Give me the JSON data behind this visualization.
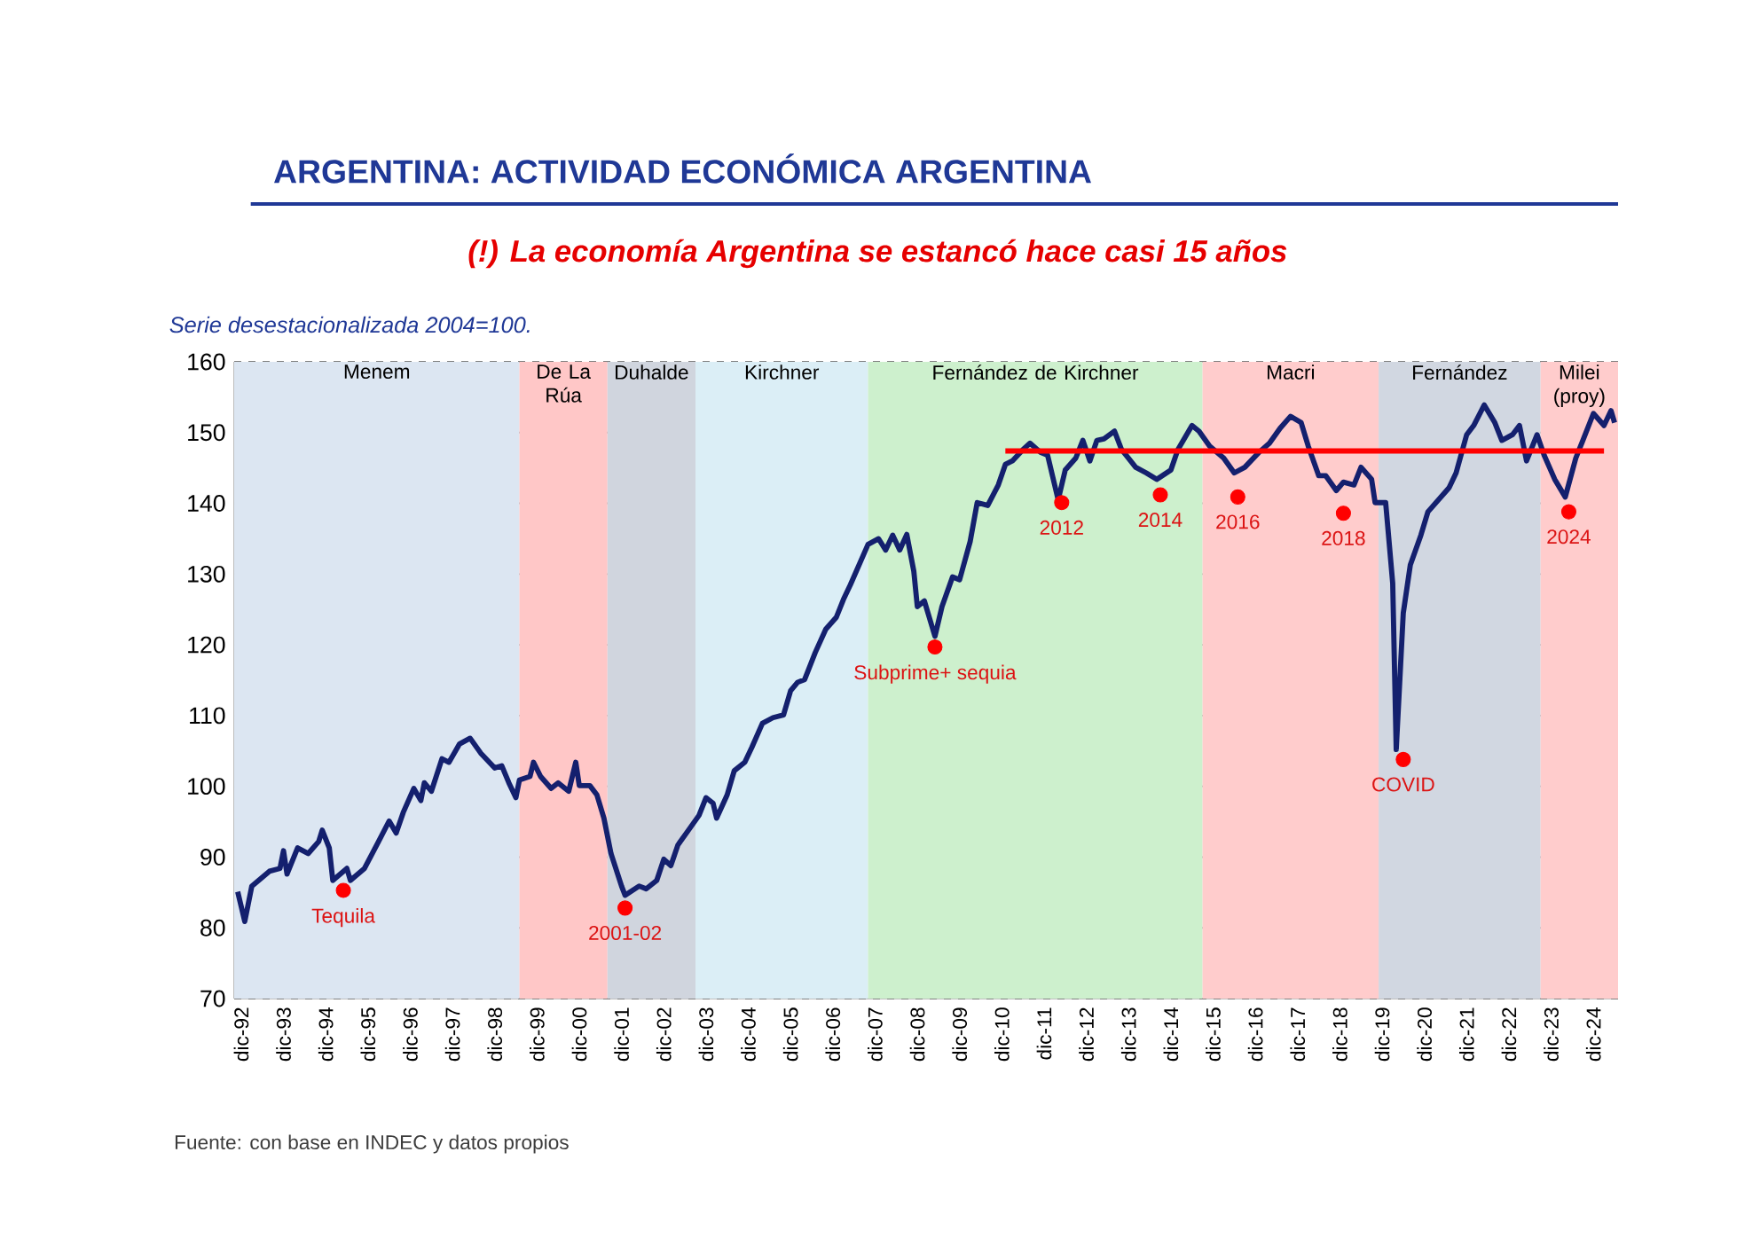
{
  "chart_data": {
    "type": "line",
    "title": "ARGENTINA: ACTIVIDAD ECONÓMICA ARGENTINA",
    "subtitle": "(!) La economía Argentina se estancó hace casi 15 años",
    "ylabel": "Serie desestacionalizada 2004=100.",
    "xlim": [
      "1992-10",
      "2025-07"
    ],
    "ylim": [
      70,
      160
    ],
    "yticks": [
      70,
      80,
      90,
      100,
      110,
      120,
      130,
      140,
      150,
      160
    ],
    "xticks": [
      {
        "value": "1992-12",
        "label": "dic-92"
      },
      {
        "value": "1993-12",
        "label": "dic-93"
      },
      {
        "value": "1994-12",
        "label": "dic-94"
      },
      {
        "value": "1995-12",
        "label": "dic-95"
      },
      {
        "value": "1996-12",
        "label": "dic-96"
      },
      {
        "value": "1997-12",
        "label": "dic-97"
      },
      {
        "value": "1998-12",
        "label": "dic-98"
      },
      {
        "value": "1999-12",
        "label": "dic-99"
      },
      {
        "value": "2000-12",
        "label": "dic-00"
      },
      {
        "value": "2001-12",
        "label": "dic-01"
      },
      {
        "value": "2002-12",
        "label": "dic-02"
      },
      {
        "value": "2003-12",
        "label": "dic-03"
      },
      {
        "value": "2004-12",
        "label": "dic-04"
      },
      {
        "value": "2005-12",
        "label": "dic-05"
      },
      {
        "value": "2006-12",
        "label": "dic-06"
      },
      {
        "value": "2007-12",
        "label": "dic-07"
      },
      {
        "value": "2008-12",
        "label": "dic-08"
      },
      {
        "value": "2009-12",
        "label": "dic-09"
      },
      {
        "value": "2010-12",
        "label": "dic-10"
      },
      {
        "value": "2011-12",
        "label": "dic-11"
      },
      {
        "value": "2012-12",
        "label": "dic-12"
      },
      {
        "value": "2013-12",
        "label": "dic-13"
      },
      {
        "value": "2014-12",
        "label": "dic-14"
      },
      {
        "value": "2015-12",
        "label": "dic-15"
      },
      {
        "value": "2016-12",
        "label": "dic-16"
      },
      {
        "value": "2017-12",
        "label": "dic-17"
      },
      {
        "value": "2018-12",
        "label": "dic-18"
      },
      {
        "value": "2019-12",
        "label": "dic-19"
      },
      {
        "value": "2020-12",
        "label": "dic-20"
      },
      {
        "value": "2021-12",
        "label": "dic-21"
      },
      {
        "value": "2022-12",
        "label": "dic-22"
      },
      {
        "value": "2023-12",
        "label": "dic-23"
      },
      {
        "value": "2024-12",
        "label": "dic-24"
      }
    ],
    "grid": "y",
    "series": [
      {
        "color": "#14206e",
        "x": [
          "1992-11",
          "1993-01",
          "1993-03",
          "1993-08",
          "1993-11",
          "1993-12",
          "1994-01",
          "1994-04",
          "1994-07",
          "1994-10",
          "1994-11",
          "1995-01",
          "1995-02",
          "1995-06",
          "1995-07",
          "1995-11",
          "1996-03",
          "1996-06",
          "1996-08",
          "1996-10",
          "1997-01",
          "1997-03",
          "1997-04",
          "1997-06",
          "1997-09",
          "1997-11",
          "1998-02",
          "1998-05",
          "1998-08",
          "1998-12",
          "1999-02",
          "1999-04",
          "1999-06",
          "1999-07",
          "1999-10",
          "1999-11",
          "2000-01",
          "2000-04",
          "2000-06",
          "2000-09",
          "2000-11",
          "2000-12",
          "2001-03",
          "2001-05",
          "2001-07",
          "2001-09",
          "2001-12",
          "2002-01",
          "2002-05",
          "2002-07",
          "2002-10",
          "2002-12",
          "2003-02",
          "2003-04",
          "2003-07",
          "2003-10",
          "2003-12",
          "2004-02",
          "2004-03",
          "2004-06",
          "2004-08",
          "2004-11",
          "2005-01",
          "2005-04",
          "2005-07",
          "2005-10",
          "2005-12",
          "2006-02",
          "2006-04",
          "2006-07",
          "2006-10",
          "2007-01",
          "2007-03",
          "2007-05",
          "2007-10",
          "2008-01",
          "2008-03",
          "2008-05",
          "2008-07",
          "2008-09",
          "2008-11",
          "2008-12",
          "2009-02",
          "2009-05",
          "2009-07",
          "2009-10",
          "2009-12",
          "2010-03",
          "2010-05",
          "2010-08",
          "2010-11",
          "2011-01",
          "2011-03",
          "2011-06",
          "2011-08",
          "2011-11",
          "2012-01",
          "2012-04",
          "2012-06",
          "2012-09",
          "2012-11",
          "2013-01",
          "2013-03",
          "2013-05",
          "2013-08",
          "2013-10",
          "2014-02",
          "2014-05",
          "2014-08",
          "2014-12",
          "2015-02",
          "2015-06",
          "2015-08",
          "2015-11",
          "2016-03",
          "2016-06",
          "2016-09",
          "2017-01",
          "2017-04",
          "2017-07",
          "2017-10",
          "2018-01",
          "2018-03",
          "2018-06",
          "2018-08",
          "2018-11",
          "2019-01",
          "2019-04",
          "2019-06",
          "2019-09",
          "2019-10",
          "2020-01",
          "2020-03",
          "2020-04",
          "2020-06",
          "2020-08",
          "2020-11",
          "2021-01",
          "2021-04",
          "2021-07",
          "2021-09",
          "2021-12",
          "2022-02",
          "2022-05",
          "2022-08",
          "2022-10",
          "2023-01",
          "2023-03",
          "2023-05",
          "2023-08",
          "2023-10",
          "2024-01",
          "2024-04",
          "2024-07",
          "2024-09",
          "2024-12",
          "2025-03",
          "2025-05",
          "2025-06"
        ],
        "values": [
          85.1,
          80.9,
          85.9,
          88.0,
          88.4,
          90.9,
          87.6,
          91.3,
          90.5,
          92.2,
          93.8,
          91.3,
          86.7,
          88.4,
          86.7,
          88.4,
          92.2,
          95.1,
          93.4,
          96.3,
          99.7,
          98.0,
          100.5,
          99.3,
          103.9,
          103.4,
          106.0,
          106.8,
          104.7,
          102.6,
          102.9,
          100.5,
          98.4,
          100.9,
          101.4,
          103.4,
          101.4,
          99.7,
          100.5,
          99.3,
          103.4,
          100.1,
          100.1,
          98.8,
          95.5,
          90.5,
          85.9,
          84.6,
          85.9,
          85.5,
          86.7,
          89.7,
          88.8,
          91.7,
          93.8,
          95.9,
          98.4,
          97.6,
          95.5,
          98.8,
          102.2,
          103.4,
          105.5,
          108.9,
          109.7,
          110.1,
          113.5,
          114.7,
          115.1,
          118.9,
          122.2,
          123.9,
          126.4,
          128.5,
          134.2,
          135.0,
          133.4,
          135.5,
          133.4,
          135.6,
          130.4,
          125.4,
          126.2,
          121.2,
          125.4,
          129.6,
          129.2,
          134.6,
          140.1,
          139.7,
          142.6,
          145.5,
          146.0,
          147.6,
          148.5,
          147.2,
          146.8,
          140.5,
          144.7,
          146.4,
          148.9,
          146.0,
          148.9,
          149.1,
          150.2,
          147.6,
          145.1,
          144.3,
          143.4,
          144.7,
          147.6,
          151.0,
          150.2,
          148.1,
          146.4,
          144.3,
          145.1,
          147.2,
          148.5,
          150.6,
          152.3,
          151.4,
          148.1,
          143.9,
          143.9,
          141.8,
          143.0,
          142.6,
          145.1,
          143.4,
          140.1,
          140.1,
          128.7,
          105.2,
          124.5,
          131.3,
          135.5,
          138.8,
          140.5,
          142.2,
          144.3,
          149.7,
          151.0,
          153.9,
          151.4,
          148.9,
          149.7,
          151.0,
          146.0,
          149.7,
          146.8,
          143.4,
          140.9,
          146.4,
          148.9,
          152.7,
          151.0,
          153.1,
          151.4
        ]
      },
      {
        "type": "line",
        "color": "#ff0000",
        "x": [
          "2011-01",
          "2025-03"
        ],
        "values": [
          147.4,
          147.4
        ]
      },
      {
        "type": "scatter",
        "color": "#ff0000",
        "x": [
          "1995-05",
          "2002-01",
          "2009-05",
          "2012-05",
          "2014-09",
          "2016-07",
          "2019-01",
          "2020-06",
          "2024-05"
        ],
        "values": [
          85.3,
          82.8,
          119.7,
          140.1,
          141.2,
          140.9,
          138.6,
          103.8,
          138.8
        ]
      }
    ],
    "bands": [
      {
        "axis": "x",
        "from": "1992-10",
        "to": "1999-07",
        "label": "Menem",
        "color": "#dce6f2"
      },
      {
        "axis": "x",
        "from": "1999-07",
        "to": "2001-08",
        "label": "De La Rúa",
        "color": "#ffc7c7"
      },
      {
        "axis": "x",
        "from": "2001-08",
        "to": "2003-09",
        "label": "Duhalde",
        "color": "#d0d5de"
      },
      {
        "axis": "x",
        "from": "2003-09",
        "to": "2007-10",
        "label": "Kirchner",
        "color": "#dbeef6"
      },
      {
        "axis": "x",
        "from": "2007-10",
        "to": "2015-09",
        "label": "Fernández de Kirchner",
        "color": "#cdf0cd"
      },
      {
        "axis": "x",
        "from": "2015-09",
        "to": "2019-11",
        "label": "Macri",
        "color": "#ffcccc"
      },
      {
        "axis": "x",
        "from": "2019-11",
        "to": "2023-09",
        "label": "Fernández",
        "color": "#d1d7e1"
      },
      {
        "axis": "x",
        "from": "2023-09",
        "to": "2025-07",
        "label": "Milei (proy)",
        "color": "#ffcccc"
      }
    ],
    "annotations": [
      {
        "text": "Tequila",
        "x": "1995-05",
        "y": 85.3
      },
      {
        "text": "2001-02",
        "x": "2002-01",
        "y": 82.8
      },
      {
        "text": "Subprime+ sequia",
        "x": "2009-05",
        "y": 119.7
      },
      {
        "text": "2012",
        "x": "2012-05",
        "y": 140.1
      },
      {
        "text": "2014",
        "x": "2014-09",
        "y": 141.2
      },
      {
        "text": "2016",
        "x": "2016-07",
        "y": 140.9
      },
      {
        "text": "2018",
        "x": "2019-01",
        "y": 138.6
      },
      {
        "text": "COVID",
        "x": "2020-06",
        "y": 103.8
      },
      {
        "text": "2024",
        "x": "2024-05",
        "y": 138.8
      },
      "Fuente: con base en INDEC y datos propios"
    ]
  }
}
